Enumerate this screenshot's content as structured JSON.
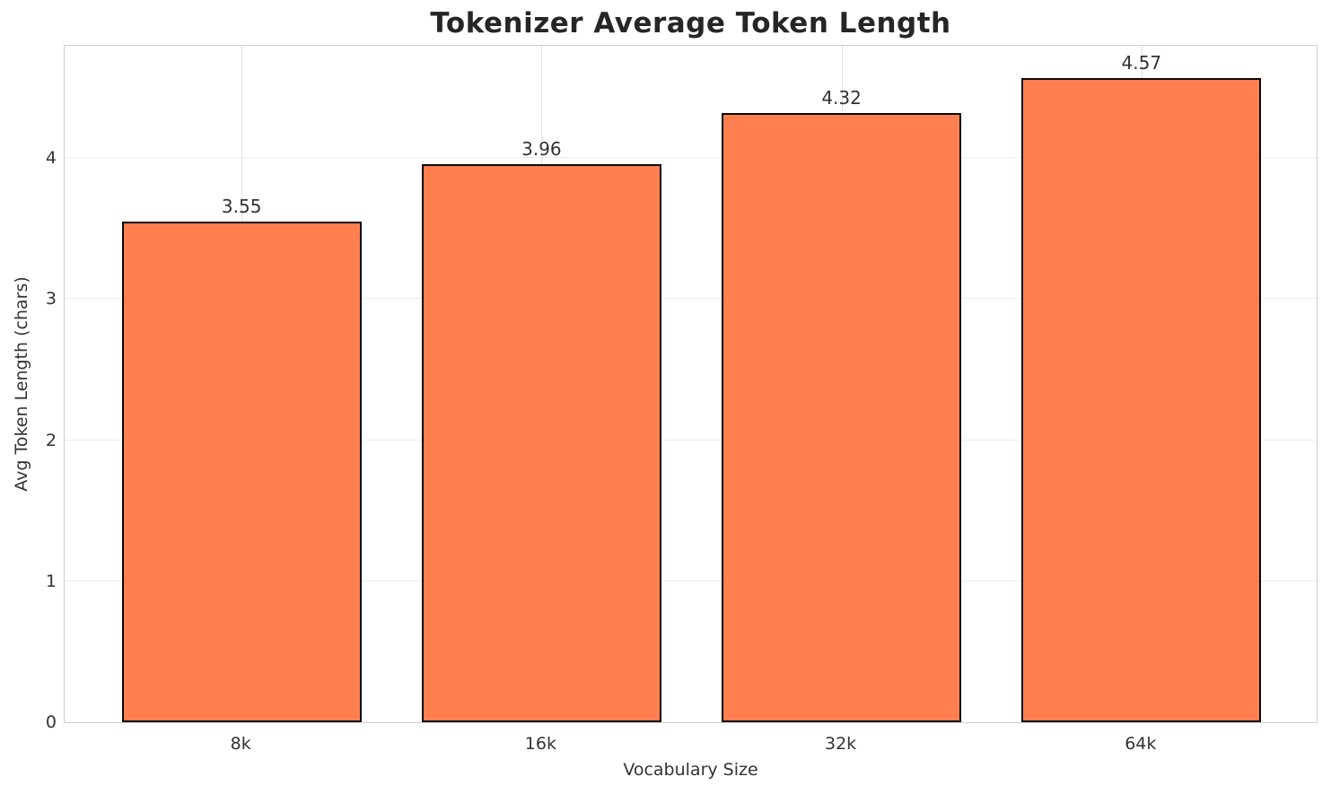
{
  "chart_data": {
    "type": "bar",
    "title": "Tokenizer Average Token Length",
    "xlabel": "Vocabulary Size",
    "ylabel": "Avg Token Length (chars)",
    "categories": [
      "8k",
      "16k",
      "32k",
      "64k"
    ],
    "values": [
      3.55,
      3.96,
      4.32,
      4.57
    ],
    "value_labels": [
      "3.55",
      "3.96",
      "4.32",
      "4.57"
    ],
    "yticks": [
      0,
      1,
      2,
      3,
      4
    ],
    "ylim": [
      0,
      4.81
    ],
    "grid": true,
    "legend": null,
    "bar_color": "#FF7F50",
    "bar_edge_color": "#0a0a0a",
    "spine_color": "#cfcfcf",
    "text_color": "#333333",
    "title_color": "#262626"
  }
}
